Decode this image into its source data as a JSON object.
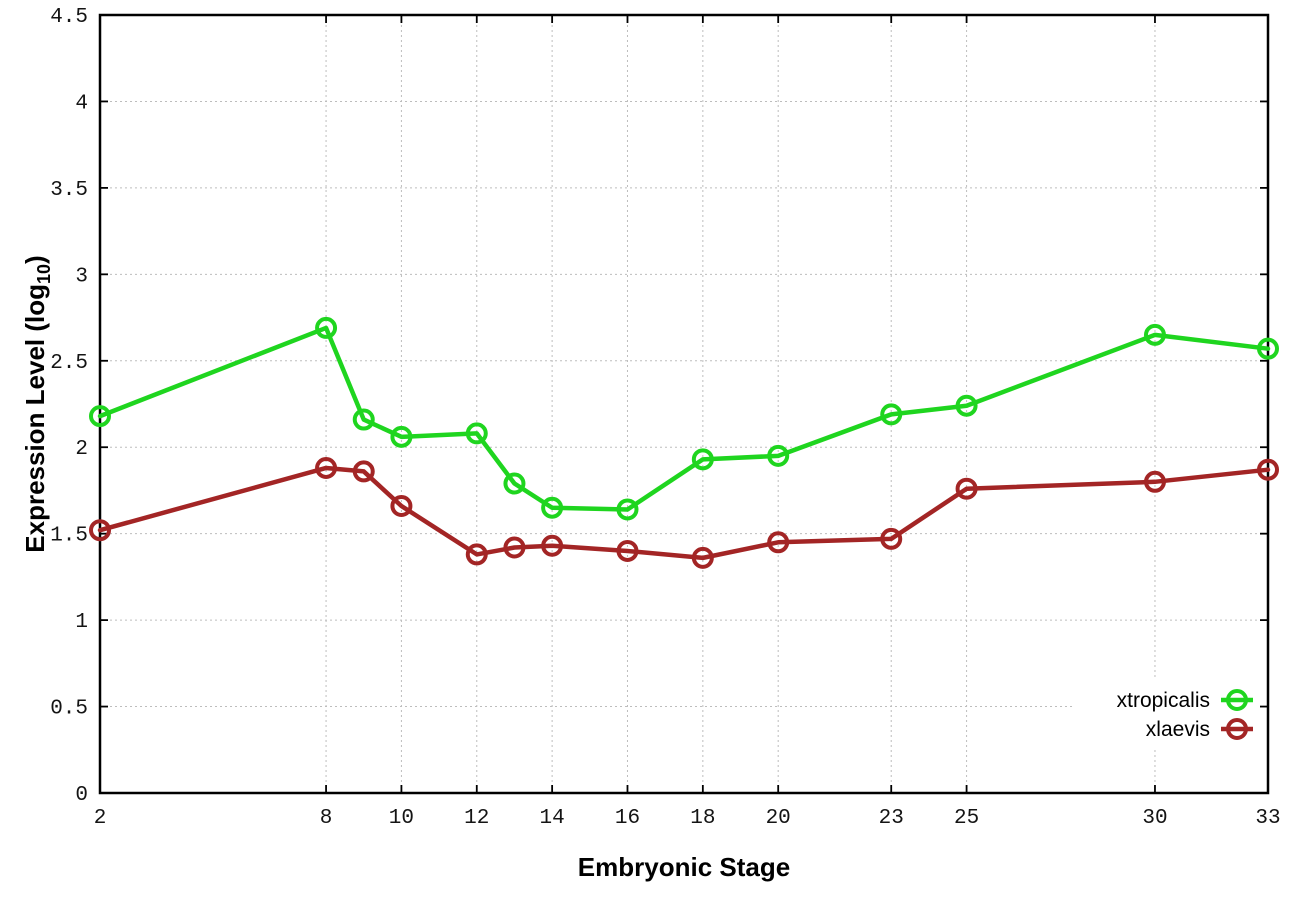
{
  "colors": {
    "background": "#ffffff",
    "axis": "#000000",
    "grid": "#bdbdbd",
    "tick_text": "#141414",
    "series_green": "#1fd51f",
    "series_brown": "#a32525"
  },
  "chart_data": {
    "type": "line",
    "title": "",
    "xlabel": "Embryonic Stage",
    "ylabel": {
      "prefix": "Expression Level (log",
      "sub": "10",
      "suffix": ")"
    },
    "xlim": [
      2,
      33
    ],
    "ylim": [
      0,
      4.5
    ],
    "grid": true,
    "legend": {
      "position": "inside-bottom-right"
    },
    "x": [
      2,
      8,
      9,
      10,
      12,
      13,
      14,
      16,
      18,
      20,
      23,
      25,
      30,
      33
    ],
    "xticks": [
      2,
      8,
      10,
      12,
      14,
      16,
      18,
      20,
      23,
      25,
      30,
      33
    ],
    "xtick_labels": [
      "2",
      "8",
      "10",
      "12",
      "14",
      "16",
      "18",
      "20",
      "23",
      "25",
      "30",
      "33"
    ],
    "yticks": [
      0,
      0.5,
      1,
      1.5,
      2,
      2.5,
      3,
      3.5,
      4,
      4.5
    ],
    "ytick_labels": [
      "0",
      "0.5",
      "1",
      "1.5",
      "2",
      "2.5",
      "3",
      "3.5",
      "4",
      "4.5"
    ],
    "series": [
      {
        "name": "xtropicalis",
        "color": "#1fd51f",
        "marker": "open-circle",
        "values": [
          2.18,
          2.69,
          2.16,
          2.06,
          2.08,
          1.79,
          1.65,
          1.64,
          1.93,
          1.95,
          2.19,
          2.24,
          2.65,
          2.57
        ]
      },
      {
        "name": "xlaevis",
        "color": "#a32525",
        "marker": "open-circle",
        "values": [
          1.52,
          1.88,
          1.86,
          1.66,
          1.38,
          1.42,
          1.43,
          1.4,
          1.36,
          1.45,
          1.47,
          1.76,
          1.8,
          1.87
        ]
      }
    ]
  }
}
